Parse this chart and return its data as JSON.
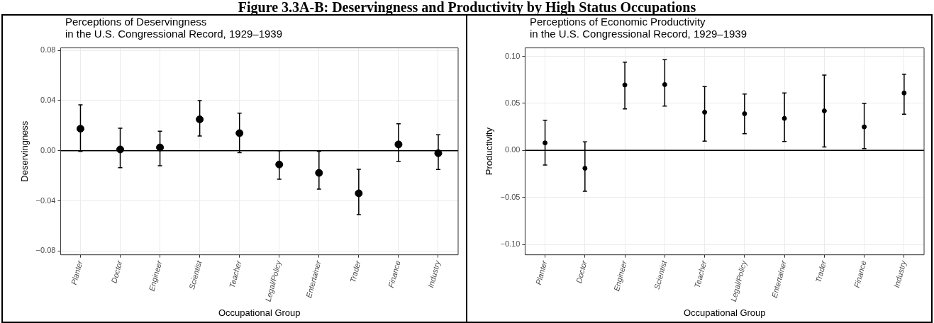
{
  "chart_data": [
    {
      "type": "scatter",
      "title": "Perceptions of Deservingness\nin the U.S. Congressional Record, 1929–1939",
      "xlabel": "Occupational Group",
      "ylabel": "Deservingness",
      "annotations": [
        "Figure 3.3A-B: Deservingness and Productivity by High Status Occupations"
      ],
      "categories": [
        "Planter",
        "Doctor",
        "Engineer",
        "Scientist",
        "Teacher",
        "Legal/Policy",
        "Entertainer",
        "Trader",
        "Finance",
        "Industry"
      ],
      "series": [
        {
          "color": "#000000",
          "values": [
            0.0175,
            0.001,
            0.0026,
            0.025,
            0.014,
            -0.011,
            -0.0177,
            -0.034,
            0.005,
            -0.002
          ],
          "errors": [
            [
              -0.0005,
              0.0366
            ],
            [
              -0.0135,
              0.018
            ],
            [
              -0.012,
              0.0156
            ],
            [
              0.0117,
              0.04
            ],
            [
              -0.0016,
              0.03
            ],
            [
              -0.0228,
              0
            ],
            [
              -0.0307,
              -0.0005
            ],
            [
              -0.051,
              -0.0148
            ],
            [
              -0.0085,
              0.0215
            ],
            [
              -0.015,
              0.0127
            ]
          ]
        }
      ],
      "ylim": [
        -0.083,
        0.082
      ],
      "yticks": [
        {
          "value": -0.08,
          "label": "−0.08"
        },
        {
          "value": -0.04,
          "label": "−0.04"
        },
        {
          "value": 0,
          "label": "0.00"
        },
        {
          "value": 0.04,
          "label": "0.04"
        },
        {
          "value": 0.08,
          "label": "0.08"
        }
      ],
      "ref_lines": [
        {
          "axis": "y",
          "value": 0,
          "color": "#000000"
        }
      ],
      "grid": true,
      "legend": false,
      "marker": "circle"
    },
    {
      "type": "scatter",
      "title": "Perceptions of Economic Productivity\nin the U.S. Congressional Record, 1929–1939",
      "xlabel": "Occupational Group",
      "ylabel": "Productivity",
      "categories": [
        "Planter",
        "Doctor",
        "Engineer",
        "Scientist",
        "Teacher",
        "Legal/Policy",
        "Entertainer",
        "Trader",
        "Finance",
        "Industry"
      ],
      "series": [
        {
          "color": "#000000",
          "values": [
            0.008,
            -0.019,
            0.0696,
            0.07,
            0.0406,
            0.039,
            0.034,
            0.042,
            0.025,
            0.061
          ],
          "errors": [
            [
              -0.0156,
              0.032
            ],
            [
              -0.0435,
              0.009
            ],
            [
              0.0442,
              0.0938
            ],
            [
              0.0471,
              0.0964
            ],
            [
              0.0098,
              0.0678
            ],
            [
              0.0178,
              0.06
            ],
            [
              0.0094,
              0.061
            ],
            [
              0.0036,
              0.08
            ],
            [
              0.002,
              0.05
            ],
            [
              0.0384,
              0.081
            ]
          ]
        }
      ],
      "ylim": [
        -0.111,
        0.109
      ],
      "yticks": [
        {
          "value": -0.1,
          "label": "−0.10"
        },
        {
          "value": -0.05,
          "label": "−0.05"
        },
        {
          "value": 0,
          "label": "0.00"
        },
        {
          "value": 0.05,
          "label": "0.05"
        },
        {
          "value": 0.1,
          "label": "0.10"
        }
      ],
      "ref_lines": [
        {
          "axis": "y",
          "value": 0,
          "color": "#000000"
        }
      ],
      "grid": true,
      "legend": false,
      "marker": "circle"
    }
  ]
}
